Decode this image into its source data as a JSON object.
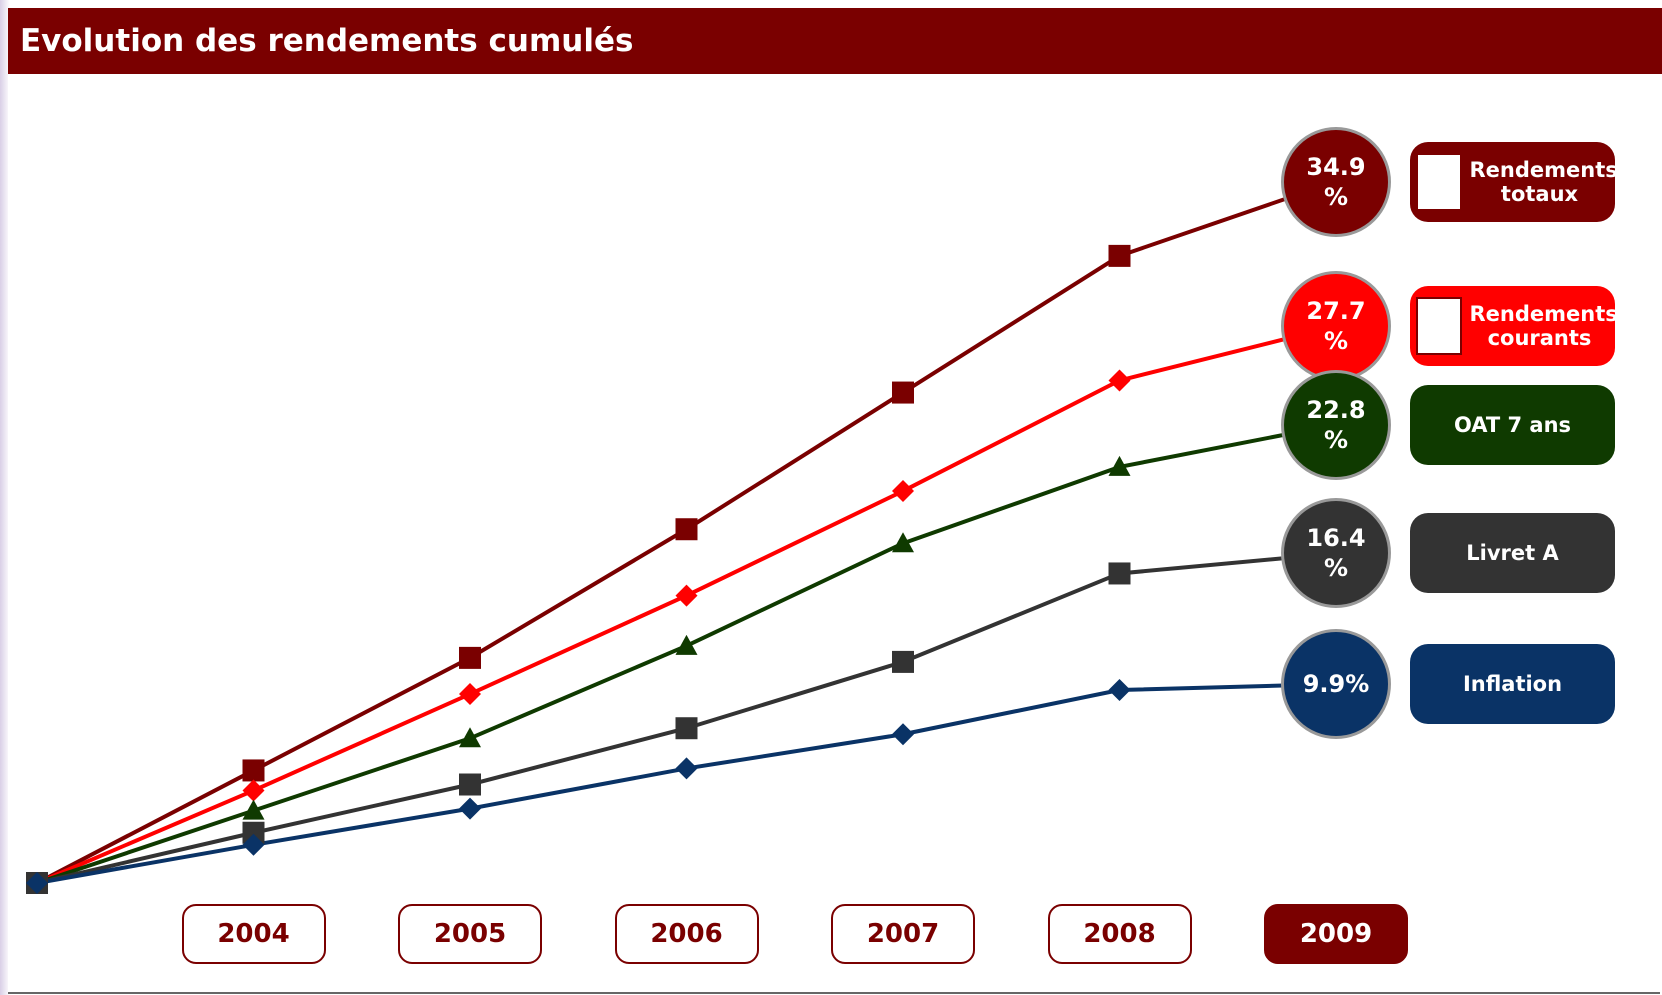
{
  "chart_data": {
    "type": "line",
    "title": "Evolution des rendements cumulés",
    "categories": [
      null,
      "2004",
      "2005",
      "2006",
      "2007",
      "2008",
      "2009"
    ],
    "series": [
      {
        "name": "Rendements totaux",
        "color": "#7a0000",
        "marker": "square",
        "values": [
          0,
          5.6,
          11.2,
          17.6,
          24.4,
          31.2,
          34.9
        ],
        "value_labels": [
          null,
          null,
          null,
          null,
          null,
          null,
          "34.9 %"
        ]
      },
      {
        "name": "Rendements courants",
        "color": "#ff0000",
        "marker": "diamond",
        "values": [
          0,
          4.6,
          9.4,
          14.3,
          19.5,
          25.0,
          27.7
        ],
        "value_labels": [
          null,
          null,
          null,
          null,
          null,
          null,
          "27.7 %"
        ]
      },
      {
        "name": "OAT 7 ans",
        "color": "#0f3a00",
        "marker": "triangle",
        "values": [
          0,
          3.6,
          7.2,
          11.8,
          16.9,
          20.7,
          22.8
        ],
        "value_labels": [
          null,
          null,
          null,
          null,
          null,
          null,
          "22.8 %"
        ]
      },
      {
        "name": "Livret A",
        "color": "#333333",
        "marker": "square",
        "values": [
          0,
          2.5,
          4.9,
          7.7,
          11.0,
          15.4,
          16.4
        ],
        "value_labels": [
          null,
          null,
          null,
          null,
          null,
          null,
          "16.4 %"
        ]
      },
      {
        "name": "Inflation",
        "color": "#0a3366",
        "marker": "diamond",
        "values": [
          0,
          1.9,
          3.7,
          5.7,
          7.4,
          9.6,
          9.9
        ],
        "value_labels": [
          null,
          null,
          null,
          null,
          null,
          null,
          "9.9%"
        ]
      }
    ]
  }
}
